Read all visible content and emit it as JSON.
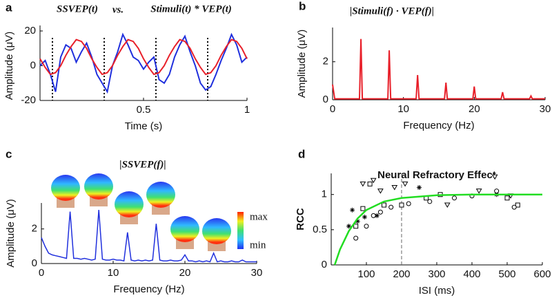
{
  "chart_data": [
    {
      "type": "line",
      "panel_label": "a",
      "title_connector": "vs.",
      "xlabel": "Time (s)",
      "ylabel": "Amplitude (μV)",
      "xlim": [
        0,
        1
      ],
      "xticks": [
        0.5,
        1
      ],
      "ylim": [
        -20,
        20
      ],
      "yticks": [
        -20,
        0,
        20
      ],
      "vlines": [
        0.06,
        0.31,
        0.56,
        0.81
      ],
      "x": [
        0,
        0.025,
        0.05,
        0.075,
        0.1,
        0.125,
        0.15,
        0.175,
        0.2,
        0.225,
        0.25,
        0.275,
        0.3,
        0.325,
        0.35,
        0.375,
        0.4,
        0.425,
        0.45,
        0.475,
        0.5,
        0.525,
        0.55,
        0.575,
        0.6,
        0.625,
        0.65,
        0.675,
        0.7,
        0.725,
        0.75,
        0.775,
        0.8,
        0.825,
        0.85,
        0.875,
        0.9,
        0.925,
        0.95,
        0.975,
        1
      ],
      "series": [
        {
          "name": "SSVEP(t)",
          "color": "#1f2fdd",
          "values": [
            0,
            3,
            -5,
            -15,
            5,
            12,
            10,
            2,
            8,
            13,
            5,
            -5,
            -10,
            -15,
            0,
            8,
            18,
            12,
            5,
            3,
            -2,
            2,
            5,
            -8,
            -10,
            -5,
            5,
            12,
            17,
            8,
            0,
            -10,
            -14,
            -12,
            -5,
            3,
            10,
            18,
            12,
            2,
            5
          ]
        },
        {
          "name": "Stimuli(t) * VEP(t)",
          "color": "#e8202a",
          "values": [
            4,
            -1,
            -5,
            -4,
            0,
            6,
            11,
            15,
            14,
            10,
            4,
            -1,
            -5,
            -4,
            0,
            6,
            11,
            15,
            14,
            10,
            4,
            -1,
            -5,
            -4,
            0,
            6,
            11,
            15,
            14,
            10,
            4,
            -1,
            -5,
            -4,
            0,
            6,
            11,
            15,
            14,
            10,
            4
          ]
        }
      ]
    },
    {
      "type": "line",
      "panel_label": "b",
      "title": "|Stimuli(f) · VEP(f)|",
      "xlabel": "Frequency (Hz)",
      "ylabel": "Amplitude (μV)",
      "xlim": [
        0,
        30
      ],
      "xticks": [
        0,
        10,
        20,
        30
      ],
      "ylim": [
        0,
        3.8
      ],
      "yticks": [
        0,
        2
      ],
      "color": "#e8202a",
      "x": [
        0,
        0.3,
        3.8,
        4,
        4.2,
        7.8,
        8,
        8.2,
        11.8,
        12,
        12.2,
        15.8,
        16,
        16.2,
        19.8,
        20,
        20.2,
        23.8,
        24,
        24.2,
        27.8,
        28,
        28.2,
        30
      ],
      "values": [
        0.8,
        0.05,
        0.05,
        3.2,
        0.05,
        0.05,
        2.6,
        0.05,
        0.05,
        1.3,
        0.05,
        0.05,
        0.9,
        0.05,
        0.05,
        0.7,
        0.05,
        0.05,
        0.4,
        0.05,
        0.05,
        0.2,
        0.05,
        0.05
      ]
    },
    {
      "type": "line",
      "panel_label": "c",
      "title": "|SSVEP(f)|",
      "xlabel": "Frequency (Hz)",
      "ylabel": "Amplitude (μV)",
      "xlim": [
        0,
        30
      ],
      "xticks": [
        0,
        10,
        20,
        30
      ],
      "ylim": [
        0,
        3.5
      ],
      "yticks": [
        0,
        2
      ],
      "color": "#1f2fdd",
      "colorbar_labels": [
        "max",
        "min"
      ],
      "x": [
        0,
        0.5,
        1,
        1.5,
        2,
        2.5,
        3,
        3.5,
        4,
        4.5,
        5,
        5.5,
        6,
        6.5,
        7,
        7.5,
        8,
        8.5,
        9,
        9.5,
        10,
        10.5,
        11,
        11.5,
        12,
        12.5,
        13,
        13.5,
        14,
        14.5,
        15,
        15.5,
        16,
        16.5,
        17,
        17.5,
        18,
        18.5,
        19,
        19.5,
        20,
        20.5,
        21,
        21.5,
        22,
        22.5,
        23,
        23.5,
        24,
        24.5,
        25,
        25.5,
        26,
        26.5,
        27,
        27.5,
        28,
        28.5,
        29,
        29.5,
        30
      ],
      "values": [
        1.5,
        1.0,
        0.6,
        0.5,
        0.45,
        0.4,
        0.35,
        0.3,
        3.0,
        0.3,
        0.3,
        0.25,
        0.3,
        0.25,
        0.2,
        0.25,
        3.1,
        0.25,
        0.2,
        0.2,
        0.25,
        0.2,
        0.2,
        0.15,
        1.8,
        0.2,
        0.15,
        0.2,
        0.15,
        0.2,
        0.15,
        0.2,
        2.3,
        0.2,
        0.15,
        0.15,
        0.2,
        0.15,
        0.15,
        0.2,
        0.5,
        0.15,
        0.15,
        0.1,
        0.15,
        0.1,
        0.15,
        0.1,
        0.6,
        0.1,
        0.15,
        0.1,
        0.1,
        0.15,
        0.1,
        0.1,
        0.2,
        0.1,
        0.1,
        0.1,
        0.1
      ]
    },
    {
      "type": "scatter",
      "panel_label": "d",
      "title": "Neural Refractory Effect",
      "xlabel": "ISI (ms)",
      "ylabel": "RCC",
      "xlim": [
        0,
        600
      ],
      "xticks": [
        100,
        200,
        300,
        400,
        500,
        600
      ],
      "ylim": [
        0,
        1.3
      ],
      "yticks": [
        0,
        0.5,
        1
      ],
      "vlines": [
        200
      ],
      "series": [
        {
          "marker": "star",
          "color": "#000000",
          "x": [
            50,
            60,
            75,
            95,
            130,
            250,
            470
          ],
          "values": [
            0.55,
            0.78,
            0.62,
            0.68,
            0.7,
            1.1,
            1.0
          ]
        },
        {
          "marker": "square",
          "color": "#000000",
          "x": [
            70,
            90,
            110,
            150,
            200,
            270,
            310,
            500,
            530
          ],
          "values": [
            0.55,
            0.8,
            1.15,
            0.85,
            0.85,
            0.95,
            1.0,
            0.95,
            0.85
          ]
        },
        {
          "marker": "circle",
          "color": "#000000",
          "x": [
            70,
            100,
            120,
            140,
            170,
            220,
            280,
            350,
            400,
            470,
            520
          ],
          "values": [
            0.38,
            0.55,
            0.7,
            0.75,
            0.82,
            0.87,
            0.9,
            0.95,
            0.98,
            1.05,
            0.82
          ]
        },
        {
          "marker": "triangle",
          "color": "#000000",
          "x": [
            90,
            120,
            140,
            180,
            210,
            330,
            420,
            465,
            510
          ],
          "values": [
            1.15,
            1.2,
            1.05,
            1.1,
            1.15,
            0.85,
            1.05,
            1.25,
            0.98
          ]
        }
      ],
      "curve": {
        "color": "#22dd22",
        "x": [
          10,
          25,
          50,
          75,
          100,
          150,
          200,
          300,
          400,
          500,
          600
        ],
        "values": [
          0,
          0.22,
          0.48,
          0.66,
          0.78,
          0.9,
          0.95,
          0.99,
          1,
          1,
          1
        ]
      }
    }
  ]
}
